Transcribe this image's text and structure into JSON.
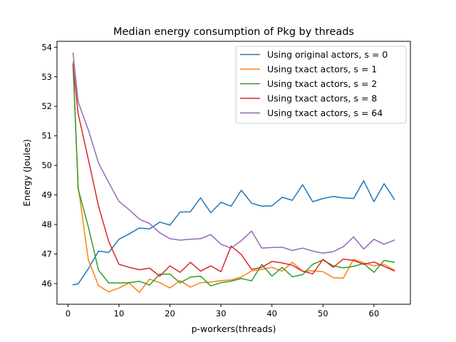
{
  "chart_data": {
    "type": "line",
    "title": "Median energy consumption of Pkg by threads",
    "xlabel": "p-workers(threads)",
    "ylabel": "Energy (Joules)",
    "xlim": [
      -2.15,
      67.15
    ],
    "ylim": [
      45.3,
      54.2
    ],
    "xticks": [
      0,
      10,
      20,
      30,
      40,
      50,
      60
    ],
    "yticks": [
      46,
      47,
      48,
      49,
      50,
      51,
      52,
      53,
      54
    ],
    "grid": false,
    "legend_position": "top-right",
    "series": [
      {
        "name": "Using original actors, s = 0",
        "color": "#1f77b4",
        "x": [
          1,
          2,
          4,
          6,
          8,
          10,
          12,
          14,
          16,
          18,
          20,
          22,
          24,
          26,
          28,
          30,
          32,
          34,
          36,
          38,
          40,
          42,
          44,
          46,
          48,
          50,
          52,
          54,
          56,
          58,
          60,
          62,
          64
        ],
        "y": [
          45.96,
          45.99,
          46.5,
          47.1,
          47.05,
          47.5,
          47.68,
          47.88,
          47.85,
          48.08,
          47.98,
          48.42,
          48.43,
          48.9,
          48.4,
          48.75,
          48.62,
          49.16,
          48.72,
          48.62,
          48.63,
          48.92,
          48.82,
          49.35,
          48.77,
          48.88,
          48.95,
          48.9,
          48.88,
          49.48,
          48.77,
          49.38,
          48.85
        ]
      },
      {
        "name": "Using txact actors, s = 1",
        "color": "#ff7f0e",
        "x": [
          1,
          2,
          4,
          6,
          8,
          10,
          12,
          14,
          16,
          18,
          20,
          22,
          24,
          26,
          28,
          30,
          32,
          34,
          36,
          38,
          40,
          42,
          44,
          46,
          48,
          50,
          52,
          54,
          56,
          58,
          60,
          62,
          64
        ],
        "y": [
          53.5,
          49.3,
          46.8,
          45.93,
          45.72,
          45.85,
          46.02,
          45.7,
          46.15,
          46.03,
          45.85,
          46.1,
          45.88,
          46.03,
          46.05,
          46.1,
          46.12,
          46.22,
          46.43,
          46.48,
          46.55,
          46.42,
          46.72,
          46.42,
          46.43,
          46.4,
          46.2,
          46.18,
          46.82,
          46.7,
          46.6,
          46.65,
          46.45
        ]
      },
      {
        "name": "Using txact actors, s = 2",
        "color": "#2ca02c",
        "x": [
          1,
          2,
          4,
          6,
          8,
          10,
          12,
          14,
          16,
          18,
          20,
          22,
          24,
          26,
          28,
          30,
          32,
          34,
          36,
          38,
          40,
          42,
          44,
          46,
          48,
          50,
          52,
          54,
          56,
          58,
          60,
          62,
          64
        ],
        "y": [
          53.42,
          49.2,
          47.92,
          46.45,
          46.02,
          46.02,
          46.03,
          46.08,
          45.95,
          46.32,
          46.32,
          46.02,
          46.22,
          46.25,
          45.92,
          46.03,
          46.08,
          46.17,
          46.09,
          46.65,
          46.25,
          46.55,
          46.23,
          46.3,
          46.65,
          46.8,
          46.6,
          46.53,
          46.58,
          46.68,
          46.38,
          46.78,
          46.72
        ]
      },
      {
        "name": "Using txact actors, s = 8",
        "color": "#d62728",
        "x": [
          1,
          2,
          4,
          6,
          8,
          10,
          12,
          14,
          16,
          18,
          20,
          22,
          24,
          26,
          28,
          30,
          32,
          34,
          36,
          38,
          40,
          42,
          44,
          46,
          48,
          50,
          52,
          54,
          56,
          58,
          60,
          62,
          64
        ],
        "y": [
          53.38,
          51.75,
          50.2,
          48.62,
          47.42,
          46.65,
          46.55,
          46.47,
          46.52,
          46.25,
          46.6,
          46.38,
          46.72,
          46.42,
          46.6,
          46.4,
          47.27,
          46.98,
          46.48,
          46.55,
          46.75,
          46.7,
          46.62,
          46.42,
          46.33,
          46.82,
          46.55,
          46.83,
          46.78,
          46.65,
          46.73,
          46.58,
          46.43
        ]
      },
      {
        "name": "Using txact actors, s = 64",
        "color": "#9467bd",
        "x": [
          1,
          2,
          4,
          6,
          8,
          10,
          12,
          14,
          16,
          18,
          20,
          22,
          24,
          26,
          28,
          30,
          32,
          34,
          36,
          38,
          40,
          42,
          44,
          46,
          48,
          50,
          52,
          54,
          56,
          58,
          60,
          62,
          64
        ],
        "y": [
          53.8,
          52.15,
          51.2,
          50.08,
          49.42,
          48.78,
          48.5,
          48.18,
          48.03,
          47.72,
          47.52,
          47.47,
          47.5,
          47.52,
          47.66,
          47.33,
          47.2,
          47.45,
          47.78,
          47.2,
          47.22,
          47.23,
          47.12,
          47.2,
          47.1,
          47.03,
          47.08,
          47.25,
          47.58,
          47.17,
          47.5,
          47.33,
          47.47
        ]
      }
    ]
  }
}
